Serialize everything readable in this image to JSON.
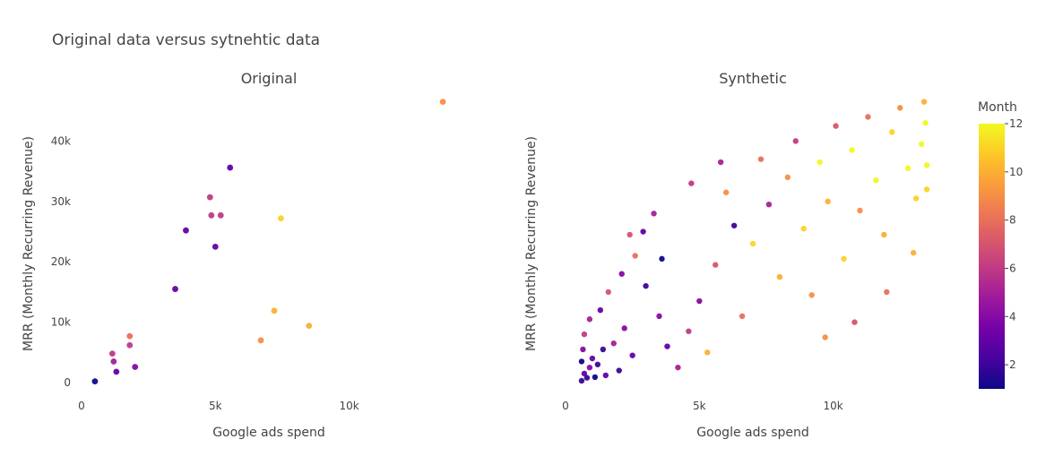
{
  "chart_data": {
    "type": "scatter",
    "title": "Original data versus sytnehtic data",
    "colorbar": {
      "title": "Month",
      "range": [
        1,
        12
      ],
      "ticks": [
        "2",
        "4",
        "6",
        "8",
        "10",
        "12"
      ],
      "colorscale": [
        "#0d0887",
        "#46039f",
        "#7201a8",
        "#9c179e",
        "#bd3786",
        "#d8576b",
        "#ed7953",
        "#fb9f3a",
        "#fdca26",
        "#f0f921"
      ]
    },
    "panels": [
      {
        "subtitle": "Original",
        "xlabel": "Google ads spend",
        "ylabel": "MRR (Monthly Recurring Revenue)",
        "xlim": [
          0,
          14000
        ],
        "ylim": [
          0,
          46000
        ],
        "xticks": [
          {
            "v": 0,
            "label": "0"
          },
          {
            "v": 5000,
            "label": "5k"
          },
          {
            "v": 10000,
            "label": "10k"
          }
        ],
        "yticks": [
          {
            "v": 0,
            "label": "0"
          },
          {
            "v": 10000,
            "label": "10k"
          },
          {
            "v": 20000,
            "label": "20k"
          },
          {
            "v": 30000,
            "label": "30k"
          },
          {
            "v": 40000,
            "label": "40k"
          }
        ],
        "points": [
          {
            "x": 500,
            "y": 200,
            "month": 1
          },
          {
            "x": 1300,
            "y": 1800,
            "month": 3
          },
          {
            "x": 1200,
            "y": 3500,
            "month": 5
          },
          {
            "x": 1150,
            "y": 4800,
            "month": 6
          },
          {
            "x": 2000,
            "y": 2600,
            "month": 4
          },
          {
            "x": 1800,
            "y": 6200,
            "month": 6
          },
          {
            "x": 1800,
            "y": 7700,
            "month": 8
          },
          {
            "x": 3500,
            "y": 15500,
            "month": 3
          },
          {
            "x": 3900,
            "y": 25200,
            "month": 3
          },
          {
            "x": 4800,
            "y": 30700,
            "month": 6
          },
          {
            "x": 4850,
            "y": 27700,
            "month": 6
          },
          {
            "x": 5200,
            "y": 27700,
            "month": 6
          },
          {
            "x": 5000,
            "y": 22500,
            "month": 3
          },
          {
            "x": 5550,
            "y": 35600,
            "month": 3
          },
          {
            "x": 6700,
            "y": 7000,
            "month": 9
          },
          {
            "x": 7200,
            "y": 11900,
            "month": 10
          },
          {
            "x": 7450,
            "y": 27200,
            "month": 11
          },
          {
            "x": 8500,
            "y": 9400,
            "month": 10
          },
          {
            "x": 13500,
            "y": 46500,
            "month": 9
          }
        ]
      },
      {
        "subtitle": "Synthetic",
        "xlabel": "Google ads spend",
        "ylabel": "MRR (Monthly Recurring Revenue)",
        "xlim": [
          0,
          14000
        ],
        "ylim": [
          0,
          46000
        ],
        "xticks": [
          {
            "v": 0,
            "label": "0"
          },
          {
            "v": 5000,
            "label": "5k"
          },
          {
            "v": 10000,
            "label": "10k"
          }
        ],
        "yticks": [],
        "points": [
          {
            "x": 600,
            "y": 300,
            "month": 2
          },
          {
            "x": 700,
            "y": 1500,
            "month": 3
          },
          {
            "x": 800,
            "y": 800,
            "month": 2
          },
          {
            "x": 900,
            "y": 2500,
            "month": 4
          },
          {
            "x": 1000,
            "y": 4000,
            "month": 3
          },
          {
            "x": 650,
            "y": 5500,
            "month": 4
          },
          {
            "x": 1200,
            "y": 3000,
            "month": 2
          },
          {
            "x": 1500,
            "y": 1200,
            "month": 3
          },
          {
            "x": 1800,
            "y": 6500,
            "month": 5
          },
          {
            "x": 2000,
            "y": 2000,
            "month": 2
          },
          {
            "x": 2200,
            "y": 9000,
            "month": 4
          },
          {
            "x": 2500,
            "y": 4500,
            "month": 3
          },
          {
            "x": 700,
            "y": 8000,
            "month": 6
          },
          {
            "x": 900,
            "y": 10500,
            "month": 5
          },
          {
            "x": 1300,
            "y": 12000,
            "month": 3
          },
          {
            "x": 1600,
            "y": 15000,
            "month": 7
          },
          {
            "x": 2100,
            "y": 18000,
            "month": 4
          },
          {
            "x": 2600,
            "y": 21000,
            "month": 8
          },
          {
            "x": 2900,
            "y": 25000,
            "month": 3
          },
          {
            "x": 3300,
            "y": 28000,
            "month": 5
          },
          {
            "x": 2400,
            "y": 24500,
            "month": 7
          },
          {
            "x": 3000,
            "y": 16000,
            "month": 2
          },
          {
            "x": 3500,
            "y": 11000,
            "month": 4
          },
          {
            "x": 3800,
            "y": 6000,
            "month": 3
          },
          {
            "x": 4200,
            "y": 2500,
            "month": 5
          },
          {
            "x": 4600,
            "y": 8500,
            "month": 6
          },
          {
            "x": 5000,
            "y": 13500,
            "month": 4
          },
          {
            "x": 5300,
            "y": 5000,
            "month": 10
          },
          {
            "x": 5600,
            "y": 19500,
            "month": 7
          },
          {
            "x": 6000,
            "y": 31500,
            "month": 9
          },
          {
            "x": 6300,
            "y": 26000,
            "month": 2
          },
          {
            "x": 6600,
            "y": 11000,
            "month": 8
          },
          {
            "x": 7000,
            "y": 23000,
            "month": 11
          },
          {
            "x": 7300,
            "y": 37000,
            "month": 8
          },
          {
            "x": 7600,
            "y": 29500,
            "month": 5
          },
          {
            "x": 8000,
            "y": 17500,
            "month": 10
          },
          {
            "x": 8300,
            "y": 34000,
            "month": 9
          },
          {
            "x": 8600,
            "y": 40000,
            "month": 6
          },
          {
            "x": 8900,
            "y": 25500,
            "month": 11
          },
          {
            "x": 9200,
            "y": 14500,
            "month": 9
          },
          {
            "x": 9500,
            "y": 36500,
            "month": 12
          },
          {
            "x": 9800,
            "y": 30000,
            "month": 10
          },
          {
            "x": 10100,
            "y": 42500,
            "month": 7
          },
          {
            "x": 10400,
            "y": 20500,
            "month": 11
          },
          {
            "x": 10700,
            "y": 38500,
            "month": 12
          },
          {
            "x": 11000,
            "y": 28500,
            "month": 9
          },
          {
            "x": 11300,
            "y": 44000,
            "month": 8
          },
          {
            "x": 11600,
            "y": 33500,
            "month": 12
          },
          {
            "x": 11900,
            "y": 24500,
            "month": 10
          },
          {
            "x": 12200,
            "y": 41500,
            "month": 11
          },
          {
            "x": 12500,
            "y": 45500,
            "month": 9
          },
          {
            "x": 12800,
            "y": 35500,
            "month": 12
          },
          {
            "x": 13100,
            "y": 30500,
            "month": 11
          },
          {
            "x": 13300,
            "y": 39500,
            "month": 12
          },
          {
            "x": 13400,
            "y": 46500,
            "month": 10
          },
          {
            "x": 13450,
            "y": 43000,
            "month": 12
          },
          {
            "x": 13500,
            "y": 36000,
            "month": 12
          },
          {
            "x": 13500,
            "y": 32000,
            "month": 11
          },
          {
            "x": 13000,
            "y": 21500,
            "month": 10
          },
          {
            "x": 12000,
            "y": 15000,
            "month": 8
          },
          {
            "x": 10800,
            "y": 10000,
            "month": 7
          },
          {
            "x": 9700,
            "y": 7500,
            "month": 9
          },
          {
            "x": 4700,
            "y": 33000,
            "month": 6
          },
          {
            "x": 5800,
            "y": 36500,
            "month": 5
          },
          {
            "x": 3600,
            "y": 20500,
            "month": 1
          },
          {
            "x": 1400,
            "y": 5500,
            "month": 2
          },
          {
            "x": 600,
            "y": 3500,
            "month": 1
          },
          {
            "x": 1100,
            "y": 900,
            "month": 1
          }
        ]
      }
    ]
  }
}
